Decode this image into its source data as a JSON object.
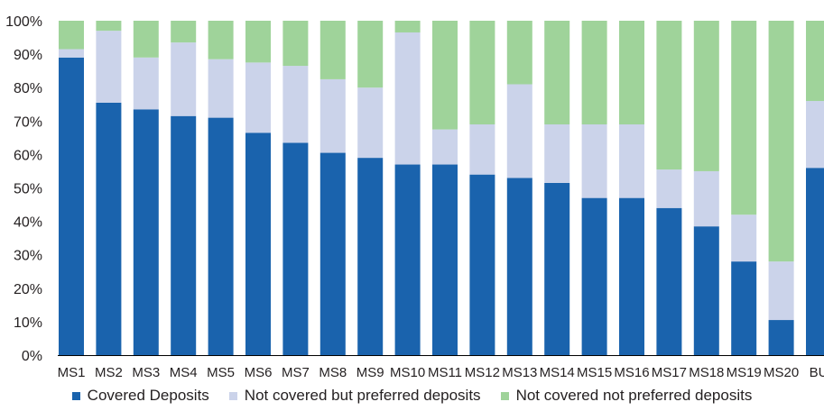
{
  "chart_data": {
    "type": "bar",
    "stacked": true,
    "categories": [
      "MS1",
      "MS2",
      "MS3",
      "MS4",
      "MS5",
      "MS6",
      "MS7",
      "MS8",
      "MS9",
      "MS10",
      "MS11",
      "MS12",
      "MS13",
      "MS14",
      "MS15",
      "MS16",
      "MS17",
      "MS18",
      "MS19",
      "MS20",
      "BU"
    ],
    "series": [
      {
        "name": "Covered Deposits",
        "color": "#1a63ad",
        "values": [
          89,
          75.5,
          73.5,
          71.5,
          71,
          66.5,
          63.5,
          60.5,
          59,
          57,
          57,
          54,
          53,
          51.5,
          47,
          47,
          44,
          38.5,
          28,
          10.5,
          56
        ]
      },
      {
        "name": "Not covered but preferred deposits",
        "color": "#cbd3ea",
        "values": [
          2.5,
          21.5,
          15.5,
          22,
          17.5,
          21,
          23,
          22,
          21,
          39.5,
          10.5,
          15,
          28,
          17.5,
          22,
          22,
          11.5,
          16.5,
          14,
          17.5,
          20
        ]
      },
      {
        "name": "Not covered not preferred deposits",
        "color": "#9fd39a",
        "values": [
          8.5,
          3,
          11,
          6.5,
          11.5,
          12.5,
          13.5,
          17.5,
          20,
          3.5,
          32.5,
          31,
          19,
          31,
          31,
          31,
          44.5,
          45,
          58,
          72,
          24
        ]
      }
    ],
    "ylim": [
      0,
      100
    ],
    "yticks": [
      "0%",
      "10%",
      "20%",
      "30%",
      "40%",
      "50%",
      "60%",
      "70%",
      "80%",
      "90%",
      "100%"
    ],
    "legend_position": "bottom",
    "title": "",
    "xlabel": "",
    "ylabel": ""
  }
}
